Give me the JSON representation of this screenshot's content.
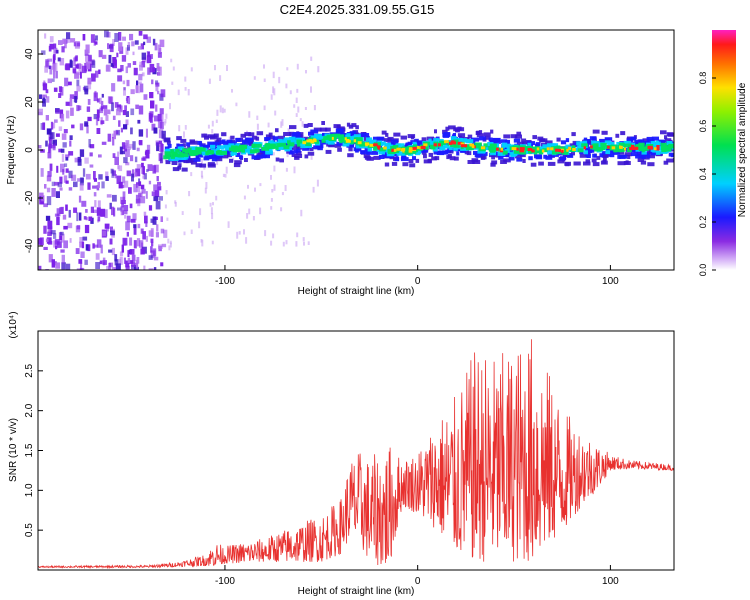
{
  "title": "C2E4.2025.331.09.55.G15",
  "chart_data": [
    {
      "type": "heatmap",
      "xlabel": "Height of straight line (km)",
      "ylabel": "Frequency (Hz)",
      "xlim": [
        -197,
        133
      ],
      "ylim": [
        -50,
        50
      ],
      "xticks": [
        -100,
        0,
        100
      ],
      "yticks": [
        40,
        20,
        0,
        -20,
        -40
      ],
      "noise_region": [
        -197,
        -132
      ],
      "ridge": [
        [
          -132,
          -2
        ],
        [
          -120,
          -1
        ],
        [
          -100,
          0
        ],
        [
          -80,
          1
        ],
        [
          -65,
          3
        ],
        [
          -55,
          4
        ],
        [
          -45,
          5
        ],
        [
          -35,
          4
        ],
        [
          -25,
          2
        ],
        [
          -15,
          0
        ],
        [
          -5,
          0
        ],
        [
          5,
          2
        ],
        [
          15,
          3
        ],
        [
          25,
          2
        ],
        [
          35,
          1
        ],
        [
          45,
          0
        ],
        [
          55,
          0
        ],
        [
          65,
          0
        ],
        [
          75,
          0
        ],
        [
          85,
          1
        ],
        [
          95,
          1
        ],
        [
          105,
          1
        ],
        [
          133,
          1
        ]
      ],
      "colorbar": {
        "label": "Normalized spectral amplitude",
        "ticks": [
          "0.0",
          "0.2",
          "0.4",
          "0.6",
          "0.8"
        ],
        "range": [
          0,
          1
        ]
      }
    },
    {
      "type": "line",
      "xlabel": "Height of straight line (km)",
      "ylabel": "SNR (10 * v/v)",
      "multiplier": "(x10⁴)",
      "xlim": [
        -197,
        133
      ],
      "ylim": [
        0,
        3.0
      ],
      "xticks": [
        -100,
        0,
        100
      ],
      "yticks": [
        "0.5",
        "1.0",
        "1.5",
        "2.0",
        "2.5"
      ],
      "color": "#e8312f",
      "envelope": [
        [
          -197,
          0.03,
          0.05
        ],
        [
          -140,
          0.03,
          0.06
        ],
        [
          -125,
          0.04,
          0.1
        ],
        [
          -110,
          0.05,
          0.2
        ],
        [
          -105,
          0.05,
          0.35
        ],
        [
          -100,
          0.08,
          0.3
        ],
        [
          -80,
          0.1,
          0.4
        ],
        [
          -60,
          0.1,
          0.6
        ],
        [
          -50,
          0.1,
          0.7
        ],
        [
          -40,
          0.2,
          0.9
        ],
        [
          -35,
          0.4,
          1.4
        ],
        [
          -30,
          0.3,
          1.5
        ],
        [
          -25,
          0.1,
          1.4
        ],
        [
          -20,
          0.05,
          1.5
        ],
        [
          -15,
          0.0,
          1.6
        ],
        [
          -8,
          0.8,
          1.4
        ],
        [
          0,
          0.7,
          1.5
        ],
        [
          10,
          0.5,
          1.9
        ],
        [
          20,
          0.2,
          2.2
        ],
        [
          30,
          0.1,
          2.8
        ],
        [
          40,
          0.1,
          2.7
        ],
        [
          50,
          0.1,
          2.8
        ],
        [
          60,
          0.1,
          3.0
        ],
        [
          68,
          0.3,
          2.5
        ],
        [
          76,
          0.5,
          2.0
        ],
        [
          85,
          0.8,
          1.8
        ],
        [
          93,
          1.0,
          1.6
        ],
        [
          100,
          1.25,
          1.45
        ],
        [
          110,
          1.27,
          1.38
        ],
        [
          133,
          1.25,
          1.32
        ]
      ]
    }
  ]
}
